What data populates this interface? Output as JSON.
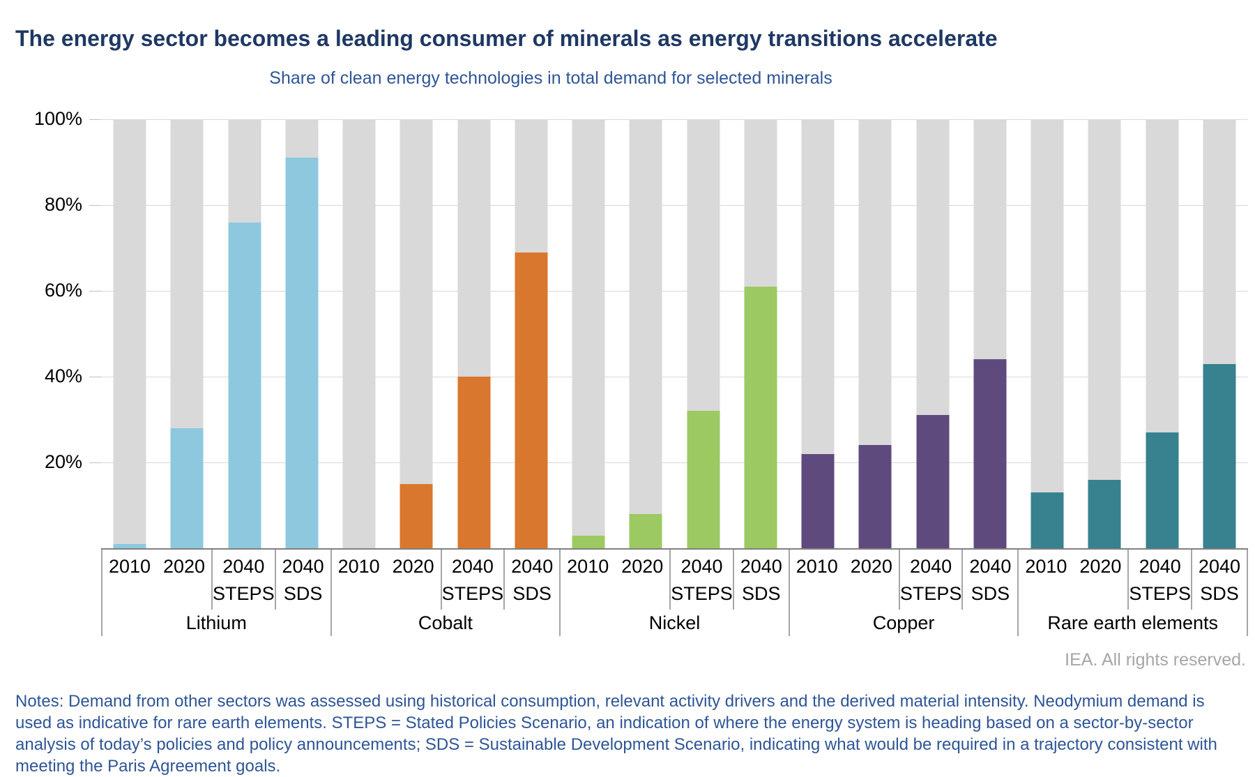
{
  "title": "The energy sector becomes a leading consumer of minerals as energy transitions accelerate",
  "attribution": "IEA. All rights reserved.",
  "notes": "Notes: Demand from other sectors was assessed using historical consumption, relevant activity drivers and the derived material intensity. Neodymium demand is used as indicative for rare earth elements. STEPS = Stated Policies Scenario, an indication of where the energy system is heading based on a sector-by-sector analysis of today’s policies and policy announcements; SDS = Sustainable Development Scenario, indicating what would be required in a trajectory consistent with meeting the Paris Agreement goals.",
  "colors": {
    "title_text": "#1f3864",
    "subtitle_text": "#2e5596",
    "notes_text": "#2e5596",
    "attribution_text": "#a6a6a6",
    "background_bar": "#d9d9d9",
    "gridline": "#d9d9d9",
    "axis_line": "#808080",
    "label_border": "#a6a6a6"
  },
  "chart_data": {
    "type": "bar",
    "title": "Share of clean energy technologies in total demand for selected minerals",
    "unit": "%",
    "ylim": [
      0,
      100
    ],
    "grid": true,
    "legend": "none",
    "y_tick_labels": [
      "100%",
      "80%",
      "60%",
      "40%",
      "20%"
    ],
    "y_tick_values": [
      100,
      80,
      60,
      40,
      20
    ],
    "x_level1_years": [
      "2010",
      "2020",
      "2040",
      "2040"
    ],
    "x_level2_scenarios": [
      "",
      "",
      "STEPS",
      "SDS"
    ],
    "background_bar_value": 100,
    "groups": [
      {
        "name": "Lithium",
        "color": "#8dc8df",
        "values": [
          1,
          28,
          76,
          91
        ]
      },
      {
        "name": "Cobalt",
        "color": "#d9772e",
        "values": [
          0,
          15,
          40,
          69
        ]
      },
      {
        "name": "Nickel",
        "color": "#9cc961",
        "values": [
          3,
          8,
          32,
          61
        ]
      },
      {
        "name": "Copper",
        "color": "#5f4a7e",
        "values": [
          22,
          24,
          31,
          44
        ]
      },
      {
        "name": "Rare earth elements",
        "color": "#38818f",
        "values": [
          13,
          16,
          27,
          43
        ]
      }
    ]
  }
}
